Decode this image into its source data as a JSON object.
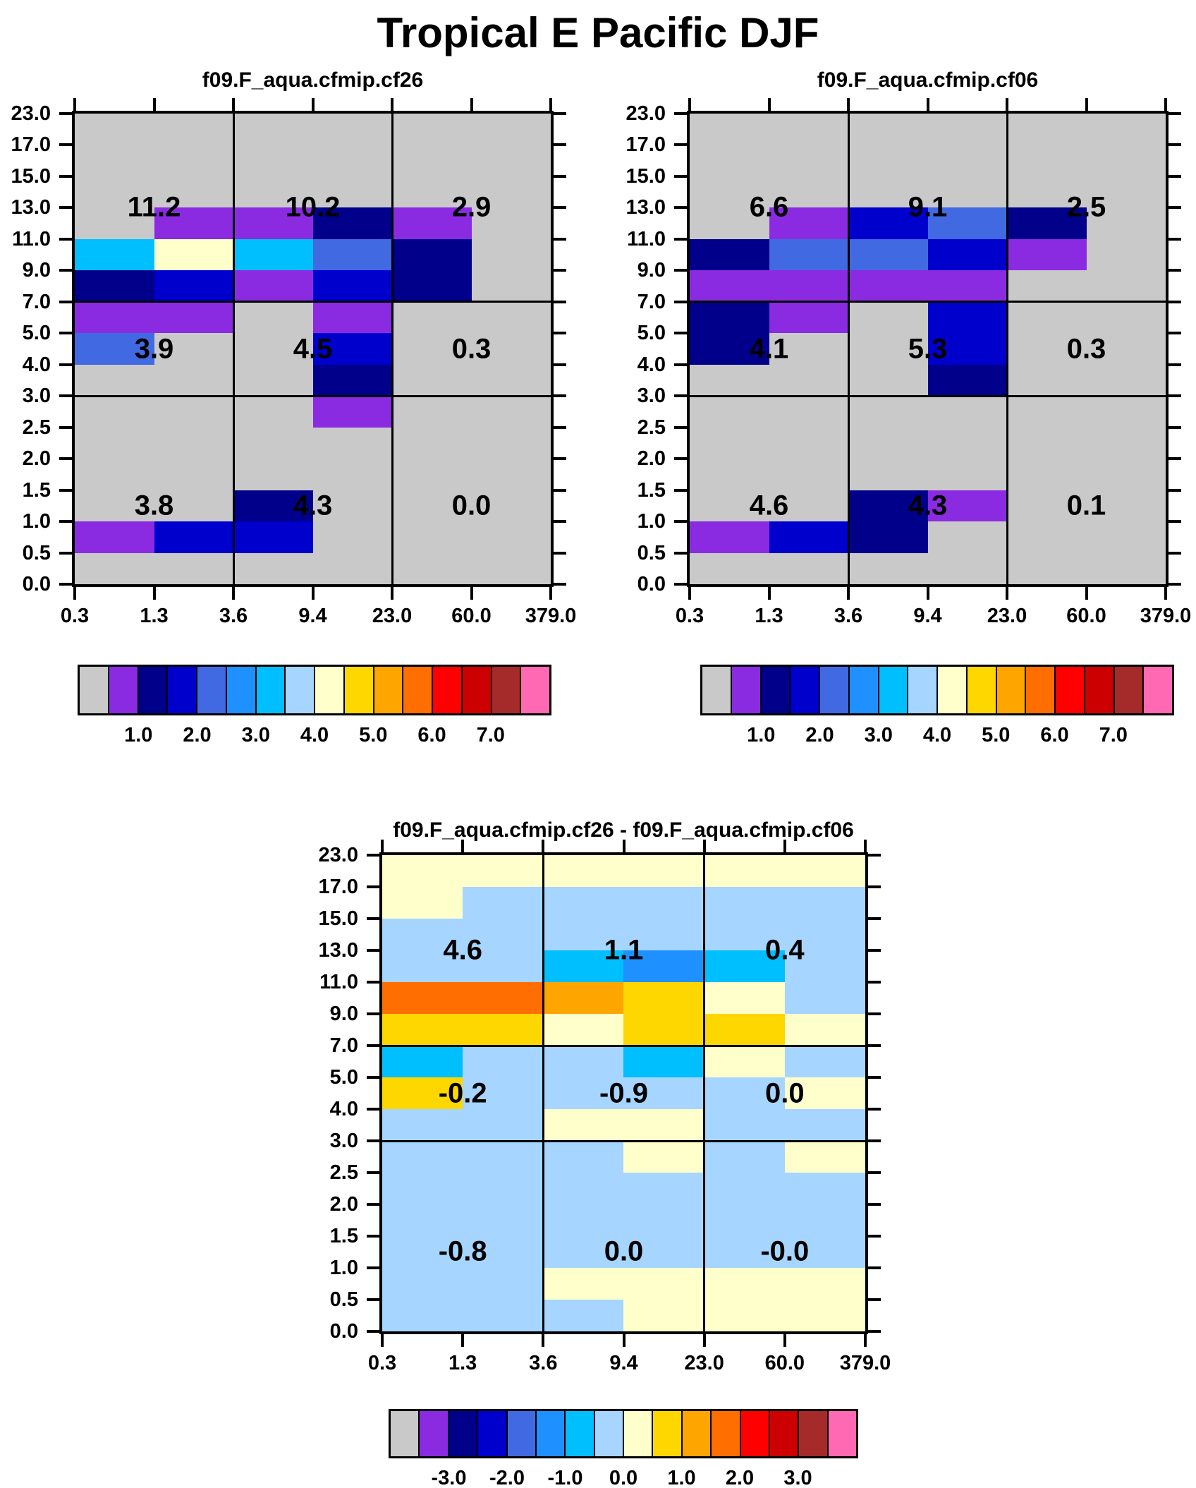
{
  "title": "Tropical E Pacific DJF",
  "color_key": {
    "G": "#c9c9c9",
    "P": "#8a2be2",
    "N": "#00008b",
    "B": "#0000cd",
    "R": "#4169e1",
    "D": "#1e90ff",
    "C": "#00bfff",
    "L": "#a6d5ff",
    "Y": "#ffffcc",
    "K": "#ffd700",
    "O": "#ffa500",
    "X": "#ff6e00",
    "E": "#ff0000",
    "M": "#cc0000",
    "W": "#a52a2a",
    "I": "#ff69b4"
  },
  "colorbar_sequence": "GPNBRDCLYKOXEMWI",
  "colorbars": {
    "mean_labels": [
      "1.0",
      "2.0",
      "3.0",
      "4.0",
      "5.0",
      "6.0",
      "7.0"
    ],
    "diff_labels": [
      "-3.0",
      "-2.0",
      "-1.0",
      "0.0",
      "1.0",
      "2.0",
      "3.0"
    ],
    "bin_width": 0.5,
    "label_boundary_indices": [
      2,
      4,
      6,
      8,
      10,
      12,
      14
    ]
  },
  "axes": {
    "x_tick_labels": [
      "0.3",
      "1.3",
      "3.6",
      "9.4",
      "23.0",
      "60.0",
      "379.0"
    ],
    "y_tick_labels": [
      "23.0",
      "17.0",
      "15.0",
      "13.0",
      "11.0",
      "9.0",
      "7.0",
      "5.0",
      "4.0",
      "3.0",
      "2.5",
      "2.0",
      "1.5",
      "1.0",
      "0.5",
      "0.0"
    ]
  },
  "chart_data": [
    {
      "type": "heatmap",
      "title": "f09.F_aqua.cfmip.cf26",
      "x_bin_edges": [
        0.3,
        1.3,
        3.6,
        9.4,
        23.0,
        60.0,
        379.0
      ],
      "y_bin_edges": [
        23.0,
        17.0,
        15.0,
        13.0,
        11.0,
        9.0,
        7.0,
        5.0,
        4.0,
        3.0,
        2.5,
        2.0,
        1.5,
        1.0,
        0.5,
        0.0
      ],
      "cell_colorcodes_rows_top_to_bottom": [
        "GGGGGG",
        "GGGGGG",
        "GGGGGG",
        "GPPNPG",
        "CYCRNG",
        "NBPBNG",
        "PPGPGG",
        "RGGBGG",
        "GGGNGG",
        "GGGPGG",
        "GGGGGG",
        "GGGGGG",
        "GGNGGG",
        "PBBGGG",
        "GGGGGG"
      ],
      "section_values": [
        [
          "11.2",
          "10.2",
          "2.9"
        ],
        [
          "3.9",
          "4.5",
          "0.3"
        ],
        [
          "3.8",
          "4.3",
          "0.0"
        ]
      ],
      "colorbar_tick_labels": [
        "1.0",
        "2.0",
        "3.0",
        "4.0",
        "5.0",
        "6.0",
        "7.0"
      ]
    },
    {
      "type": "heatmap",
      "title": "f09.F_aqua.cfmip.cf06",
      "x_bin_edges": [
        0.3,
        1.3,
        3.6,
        9.4,
        23.0,
        60.0,
        379.0
      ],
      "y_bin_edges": [
        23.0,
        17.0,
        15.0,
        13.0,
        11.0,
        9.0,
        7.0,
        5.0,
        4.0,
        3.0,
        2.5,
        2.0,
        1.5,
        1.0,
        0.5,
        0.0
      ],
      "cell_colorcodes_rows_top_to_bottom": [
        "GGGGGG",
        "GGGGGG",
        "GGGGGG",
        "GPBRNG",
        "NRRBPG",
        "PPPPGG",
        "NPGBGG",
        "NGGBGG",
        "GGGNGG",
        "GGGGGG",
        "GGGGGG",
        "GGGGGG",
        "GGNPGG",
        "PBNGGG",
        "GGGGGG"
      ],
      "section_values": [
        [
          "6.6",
          "9.1",
          "2.5"
        ],
        [
          "4.1",
          "5.3",
          "0.3"
        ],
        [
          "4.6",
          "4.3",
          "0.1"
        ]
      ],
      "colorbar_tick_labels": [
        "1.0",
        "2.0",
        "3.0",
        "4.0",
        "5.0",
        "6.0",
        "7.0"
      ]
    },
    {
      "type": "heatmap",
      "title": "f09.F_aqua.cfmip.cf26 - f09.F_aqua.cfmip.cf06",
      "x_bin_edges": [
        0.3,
        1.3,
        3.6,
        9.4,
        23.0,
        60.0,
        379.0
      ],
      "y_bin_edges": [
        23.0,
        17.0,
        15.0,
        13.0,
        11.0,
        9.0,
        7.0,
        5.0,
        4.0,
        3.0,
        2.5,
        2.0,
        1.5,
        1.0,
        0.5,
        0.0
      ],
      "cell_colorcodes_rows_top_to_bottom": [
        "YYYYYY",
        "YLLLLL",
        "LLLLLL",
        "LLCDCL",
        "XXOKYL",
        "KKYKKY",
        "CLLCYL",
        "KLLLLY",
        "LLYYLL",
        "LLLYLY",
        "LLLLLL",
        "LLLLLL",
        "LLLLLL",
        "LLYYYY",
        "LLLYYY"
      ],
      "section_values": [
        [
          "4.6",
          "1.1",
          "0.4"
        ],
        [
          "-0.2",
          "-0.9",
          "0.0"
        ],
        [
          "-0.8",
          "0.0",
          "-0.0"
        ]
      ],
      "colorbar_tick_labels": [
        "-3.0",
        "-2.0",
        "-1.0",
        "0.0",
        "1.0",
        "2.0",
        "3.0"
      ]
    }
  ]
}
